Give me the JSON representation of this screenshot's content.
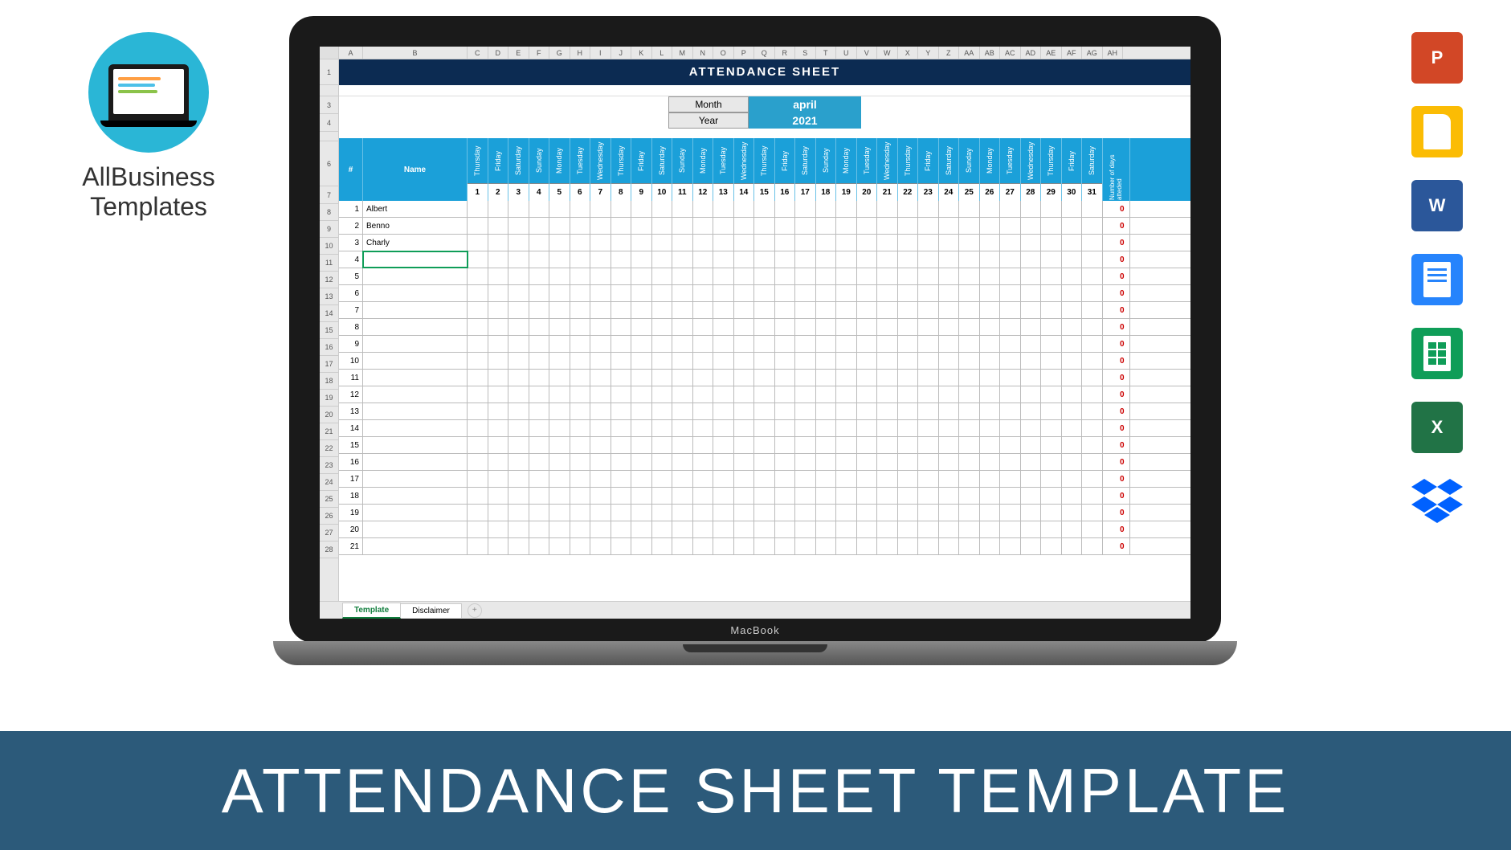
{
  "logo": {
    "line1": "AllBusiness",
    "line2": "Templates"
  },
  "apps": [
    {
      "name": "powerpoint-icon",
      "label": "P",
      "bg": "#d24726"
    },
    {
      "name": "slides-icon",
      "label": "",
      "bg": "#fbbc04"
    },
    {
      "name": "word-icon",
      "label": "W",
      "bg": "#2b579a"
    },
    {
      "name": "docs-icon",
      "label": "",
      "bg": "#2684fc"
    },
    {
      "name": "sheets-icon",
      "label": "",
      "bg": "#0f9d58"
    },
    {
      "name": "excel-icon",
      "label": "X",
      "bg": "#217346"
    }
  ],
  "banner": "ATTENDANCE SHEET TEMPLATE",
  "laptop_label": "MacBook",
  "sheet": {
    "title": "ATTENDANCE SHEET",
    "colLetters": [
      "A",
      "B",
      "C",
      "D",
      "E",
      "F",
      "G",
      "H",
      "I",
      "J",
      "K",
      "L",
      "M",
      "N",
      "O",
      "P",
      "Q",
      "R",
      "S",
      "T",
      "U",
      "V",
      "W",
      "X",
      "Y",
      "Z",
      "AA",
      "AB",
      "AC",
      "AD",
      "AE",
      "AF",
      "AG",
      "AH"
    ],
    "rowNumbers": [
      "1",
      "",
      "3",
      "4",
      "",
      "6",
      "7",
      "8",
      "9",
      "10",
      "11",
      "12",
      "13",
      "14",
      "15",
      "16",
      "17",
      "18",
      "19",
      "20",
      "21",
      "22",
      "23",
      "24",
      "25",
      "26",
      "27",
      "28"
    ],
    "meta": {
      "monthLabel": "Month",
      "monthValue": "april",
      "yearLabel": "Year",
      "yearValue": "2021"
    },
    "headers": {
      "num": "#",
      "name": "Name",
      "total": "Number of days atteded"
    },
    "days": [
      {
        "name": "Thursday",
        "n": 1
      },
      {
        "name": "Friday",
        "n": 2
      },
      {
        "name": "Saturday",
        "n": 3
      },
      {
        "name": "Sunday",
        "n": 4
      },
      {
        "name": "Monday",
        "n": 5
      },
      {
        "name": "Tuesday",
        "n": 6
      },
      {
        "name": "Wednesday",
        "n": 7
      },
      {
        "name": "Thursday",
        "n": 8
      },
      {
        "name": "Friday",
        "n": 9
      },
      {
        "name": "Saturday",
        "n": 10
      },
      {
        "name": "Sunday",
        "n": 11
      },
      {
        "name": "Monday",
        "n": 12
      },
      {
        "name": "Tuesday",
        "n": 13
      },
      {
        "name": "Wednesday",
        "n": 14
      },
      {
        "name": "Thursday",
        "n": 15
      },
      {
        "name": "Friday",
        "n": 16
      },
      {
        "name": "Saturday",
        "n": 17
      },
      {
        "name": "Sunday",
        "n": 18
      },
      {
        "name": "Monday",
        "n": 19
      },
      {
        "name": "Tuesday",
        "n": 20
      },
      {
        "name": "Wednesday",
        "n": 21
      },
      {
        "name": "Thursday",
        "n": 22
      },
      {
        "name": "Friday",
        "n": 23
      },
      {
        "name": "Saturday",
        "n": 24
      },
      {
        "name": "Sunday",
        "n": 25
      },
      {
        "name": "Monday",
        "n": 26
      },
      {
        "name": "Tuesday",
        "n": 27
      },
      {
        "name": "Wednesday",
        "n": 28
      },
      {
        "name": "Thursday",
        "n": 29
      },
      {
        "name": "Friday",
        "n": 30
      },
      {
        "name": "Saturday",
        "n": 31
      }
    ],
    "rows": [
      {
        "n": 1,
        "name": "Albert",
        "tot": 0
      },
      {
        "n": 2,
        "name": "Benno",
        "tot": 0
      },
      {
        "n": 3,
        "name": "Charly",
        "tot": 0
      },
      {
        "n": 4,
        "name": "",
        "tot": 0,
        "sel": true
      },
      {
        "n": 5,
        "name": "",
        "tot": 0
      },
      {
        "n": 6,
        "name": "",
        "tot": 0
      },
      {
        "n": 7,
        "name": "",
        "tot": 0
      },
      {
        "n": 8,
        "name": "",
        "tot": 0
      },
      {
        "n": 9,
        "name": "",
        "tot": 0
      },
      {
        "n": 10,
        "name": "",
        "tot": 0
      },
      {
        "n": 11,
        "name": "",
        "tot": 0
      },
      {
        "n": 12,
        "name": "",
        "tot": 0
      },
      {
        "n": 13,
        "name": "",
        "tot": 0
      },
      {
        "n": 14,
        "name": "",
        "tot": 0
      },
      {
        "n": 15,
        "name": "",
        "tot": 0
      },
      {
        "n": 16,
        "name": "",
        "tot": 0
      },
      {
        "n": 17,
        "name": "",
        "tot": 0
      },
      {
        "n": 18,
        "name": "",
        "tot": 0
      },
      {
        "n": 19,
        "name": "",
        "tot": 0
      },
      {
        "n": 20,
        "name": "",
        "tot": 0
      },
      {
        "n": 21,
        "name": "",
        "tot": 0
      }
    ],
    "tabs": {
      "active": "Template",
      "other": "Disclaimer"
    }
  },
  "colors": {
    "banner": "#2c5a7a",
    "titleBar": "#0c2b52",
    "headerBlue": "#1ba0d9",
    "metaValBg": "#2aa0cc",
    "totalRed": "#c00",
    "logoCircle": "#2ab6d6"
  }
}
